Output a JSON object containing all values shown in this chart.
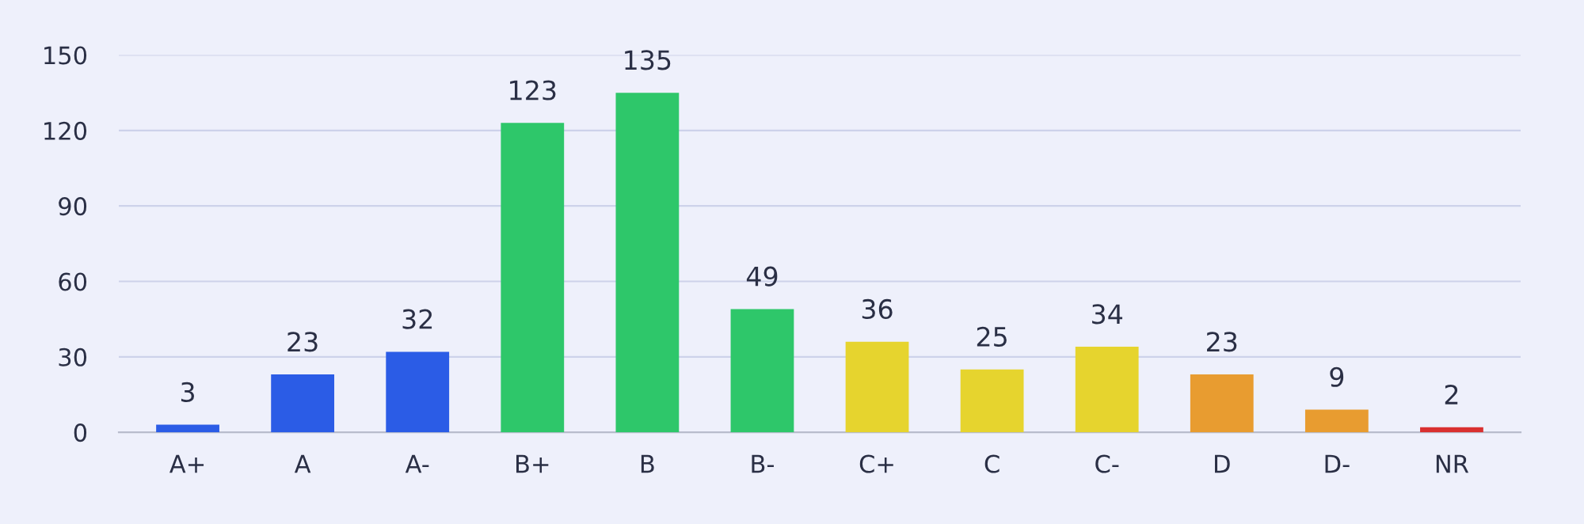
{
  "chart_data": {
    "type": "bar",
    "categories": [
      "A+",
      "A",
      "A-",
      "B+",
      "B",
      "B-",
      "C+",
      "C",
      "C-",
      "D",
      "D-",
      "NR"
    ],
    "values": [
      3,
      23,
      32,
      123,
      135,
      49,
      36,
      25,
      34,
      23,
      9,
      2
    ],
    "colors": [
      "#2b5ce6",
      "#2b5ce6",
      "#2b5ce6",
      "#2ec76a",
      "#2ec76a",
      "#2ec76a",
      "#e6d42e",
      "#e6d42e",
      "#e6d42e",
      "#e89c30",
      "#e89c30",
      "#d93030"
    ],
    "ylim": [
      0,
      150
    ],
    "yticks": [
      0,
      30,
      60,
      90,
      120,
      150
    ],
    "grid": "y",
    "data_labels": true
  }
}
